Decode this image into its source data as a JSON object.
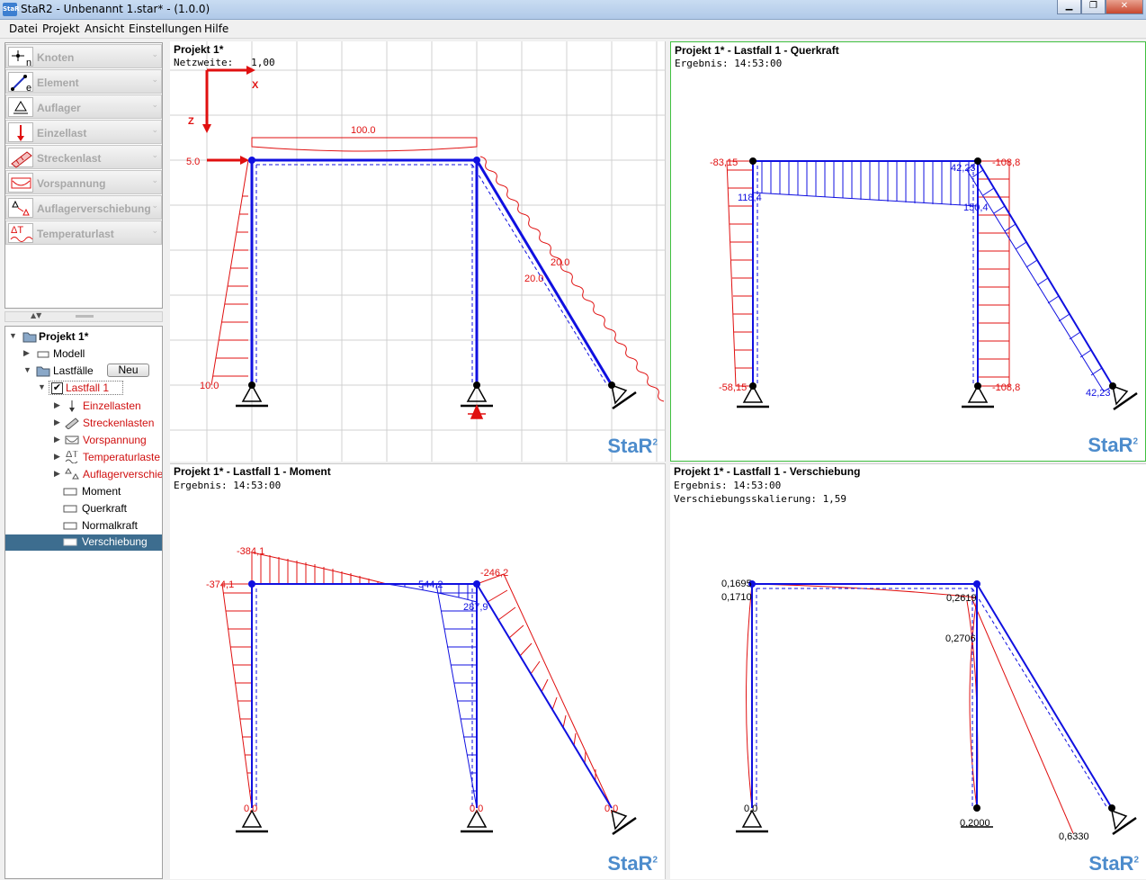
{
  "window": {
    "title": "StaR2 - Unbenannt 1.star* - (1.0.0)",
    "icon": "StaR",
    "min": "▁",
    "max": "❐",
    "close": "✕"
  },
  "menu": [
    "Datei",
    "Projekt",
    "Ansicht",
    "Einstellungen",
    "Hilfe"
  ],
  "tools": [
    {
      "label": "Knoten",
      "icon": "node-icon",
      "sub": "n"
    },
    {
      "label": "Element",
      "icon": "element-icon",
      "sub": "e"
    },
    {
      "label": "Auflager",
      "icon": "support-icon"
    },
    {
      "label": "Einzellast",
      "icon": "point-load-icon"
    },
    {
      "label": "Streckenlast",
      "icon": "line-load-icon"
    },
    {
      "label": "Vorspannung",
      "icon": "prestress-icon"
    },
    {
      "label": "Auflagerverschiebung",
      "icon": "support-displacement-icon"
    },
    {
      "label": "Temperaturlast",
      "icon": "temperature-load-icon"
    }
  ],
  "splitter": {
    "arrows": "▲▼"
  },
  "tree": {
    "project": "Projekt 1*",
    "model": "Modell",
    "loadcases": "Lastfälle",
    "new_button": "Neu",
    "loadcase": "Lastfall 1",
    "children": [
      "Einzellasten",
      "Streckenlasten",
      "Vorspannung",
      "Temperaturlaste",
      "Auflagerverschie"
    ],
    "results": [
      "Moment",
      "Querkraft",
      "Normalkraft",
      "Verschiebung"
    ],
    "selected": "Verschiebung"
  },
  "views": {
    "model": {
      "title": "Projekt 1*",
      "sub": "Netzweite:   1,00",
      "axis_x": "X",
      "axis_z": "Z",
      "labels": [
        "100.0",
        "5.0",
        "20.0",
        "20.0",
        "10.0"
      ]
    },
    "shear": {
      "title": "Projekt 1* - Lastfall 1 - Querkraft",
      "sub": "Ergebnis: 14:53:00",
      "labels": [
        "-83,15",
        "118,4",
        "42,23",
        "-108,8",
        "150,4",
        "-58,15",
        "-108,8",
        "42,23"
      ]
    },
    "moment": {
      "title": "Projekt 1* - Lastfall 1 - Moment",
      "sub": "Ergebnis: 14:53:00",
      "labels": [
        "-384,1",
        "-374,1",
        "544,2",
        "-246,2",
        "287,9",
        "0,0",
        "0,0",
        "0,0"
      ]
    },
    "displacement": {
      "title": "Projekt 1* - Lastfall 1 - Verschiebung",
      "sub": "Ergebnis: 14:53:00",
      "sub2": "Verschiebungsskalierung: 1,59",
      "labels": [
        "0,1695",
        "0,1710",
        "0,2619",
        "0,2706",
        "0,0",
        "0,2000",
        "0,6330"
      ]
    }
  },
  "logo": "StaR",
  "logo_sup": "2",
  "colors": {
    "structure": "#1010e0",
    "load": "#e01010",
    "grid": "#d0d0d0",
    "active_border": "#40c040"
  }
}
